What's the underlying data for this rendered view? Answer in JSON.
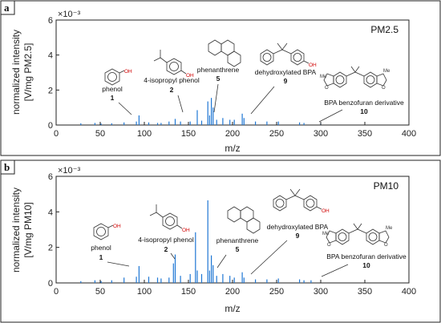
{
  "chart_data": [
    {
      "type": "bar",
      "panel_label": "a",
      "corner_label": "PM2.5",
      "xlabel": "m/z",
      "ylabel": [
        "normalized intensity",
        "[V/mg PM2.5]"
      ],
      "y_exponent_label": "×10⁻³",
      "xlim": [
        0,
        400
      ],
      "ylim": [
        0,
        6
      ],
      "xticks": [
        "0",
        "50",
        "100",
        "150",
        "200",
        "250",
        "300",
        "350",
        "400"
      ],
      "yticks": [
        "0",
        "2",
        "4",
        "6"
      ],
      "x": [
        28,
        44,
        51,
        63,
        77,
        91,
        94,
        105,
        115,
        119,
        128,
        135,
        141,
        152,
        160,
        165,
        172,
        174,
        176,
        178,
        182,
        189,
        197,
        202,
        211,
        213,
        226,
        239,
        252,
        276,
        281,
        300
      ],
      "values": [
        0.1,
        0.12,
        0.08,
        0.1,
        0.15,
        0.2,
        0.55,
        0.15,
        0.12,
        0.12,
        0.2,
        0.35,
        0.2,
        0.2,
        0.85,
        0.25,
        1.35,
        0.55,
        1.55,
        1.0,
        0.3,
        0.4,
        0.3,
        0.3,
        0.65,
        0.4,
        0.2,
        0.2,
        0.2,
        0.15,
        0.12,
        0.1
      ],
      "annotations": [
        {
          "name": "phenol",
          "number": "1"
        },
        {
          "name": "4-isopropyl phenol",
          "number": "2"
        },
        {
          "name": "phenanthrene",
          "number": "5"
        },
        {
          "name": "dehydroxylated BPA",
          "number": "9"
        },
        {
          "name": "BPA benzofuran derivative",
          "number": "10"
        }
      ],
      "structure_atoms": {
        "oh": "OH",
        "o": "O",
        "me": "Me"
      },
      "grid": false,
      "legend": "none"
    },
    {
      "type": "bar",
      "panel_label": "b",
      "corner_label": "PM10",
      "xlabel": "m/z",
      "ylabel": [
        "normalized intensity",
        "[V/mg PM10]"
      ],
      "y_exponent_label": "×10⁻³",
      "xlim": [
        0,
        400
      ],
      "ylim": [
        0,
        6
      ],
      "xticks": [
        "0",
        "50",
        "100",
        "150",
        "200",
        "250",
        "300",
        "350",
        "400"
      ],
      "yticks": [
        "0",
        "2",
        "4",
        "6"
      ],
      "x": [
        28,
        44,
        51,
        63,
        77,
        91,
        94,
        105,
        115,
        119,
        128,
        133,
        135,
        141,
        152,
        158,
        160,
        165,
        172,
        174,
        176,
        178,
        182,
        189,
        197,
        202,
        211,
        213,
        226,
        239,
        252,
        276,
        281,
        289
      ],
      "values": [
        0.1,
        0.15,
        0.1,
        0.15,
        0.3,
        0.35,
        0.95,
        0.35,
        0.3,
        0.25,
        0.3,
        1.1,
        1.6,
        0.4,
        0.5,
        2.85,
        0.7,
        0.5,
        4.65,
        0.7,
        1.55,
        1.0,
        0.4,
        0.5,
        0.4,
        0.3,
        0.6,
        0.3,
        0.2,
        0.2,
        0.25,
        0.2,
        0.15,
        0.15
      ],
      "annotations": [
        {
          "name": "phenol",
          "number": "1"
        },
        {
          "name": "4-isopropyl phenol",
          "number": "2"
        },
        {
          "name": "phenanthrene",
          "number": "5"
        },
        {
          "name": "dehydroxylated BPA",
          "number": "9"
        },
        {
          "name": "BPA benzofuran derivative",
          "number": "10"
        }
      ],
      "structure_atoms": {
        "oh": "OH",
        "o": "O",
        "me": "Me"
      },
      "grid": false,
      "legend": "none"
    }
  ],
  "colors": {
    "bars": "#1f77d4",
    "frame": "#222222",
    "oh_label": "#d00000"
  }
}
